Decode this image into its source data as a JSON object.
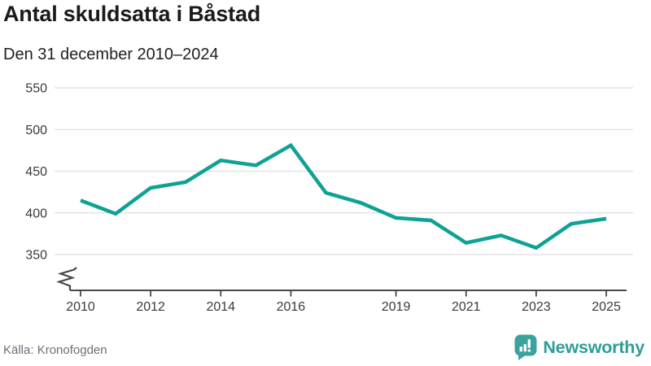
{
  "header": {
    "title": "Antal skuldsatta i Båstad",
    "subtitle": "Den 31 december 2010–2024"
  },
  "footer": {
    "source": "Källa: Kronofogden",
    "brand_name": "Newsworthy"
  },
  "colors": {
    "line": "#0fa294",
    "brand_teal": "#2e9e98",
    "logo_bubble": "#3ba39c",
    "gridline": "#e4e4e4",
    "axis": "#47474d",
    "tick_label": "#3a3a3a"
  },
  "chart_data": {
    "type": "line",
    "title": "Antal skuldsatta i Båstad",
    "subtitle": "Den 31 december 2010–2024",
    "x": [
      2010,
      2011,
      2012,
      2013,
      2014,
      2015,
      2016,
      2017,
      2018,
      2019,
      2020,
      2021,
      2022,
      2023,
      2024,
      2025
    ],
    "values": [
      415,
      399,
      430,
      437,
      463,
      457,
      481,
      424,
      412,
      394,
      391,
      364,
      373,
      358,
      387,
      393
    ],
    "series_name": "Antal skuldsatta",
    "xlabel": "",
    "ylabel": "",
    "y_ticks": [
      350,
      400,
      450,
      500,
      550
    ],
    "x_tick_years": [
      2010,
      2012,
      2014,
      2016,
      2019,
      2021,
      2023,
      2025
    ],
    "x_tick_labels": [
      "2010",
      "2012",
      "2014",
      "2016",
      "2019",
      "2021",
      "2023",
      "2025"
    ],
    "ylim": [
      350,
      550
    ],
    "axis_break": true,
    "grid": true,
    "legend": "none",
    "line_color": "#0fa294"
  }
}
